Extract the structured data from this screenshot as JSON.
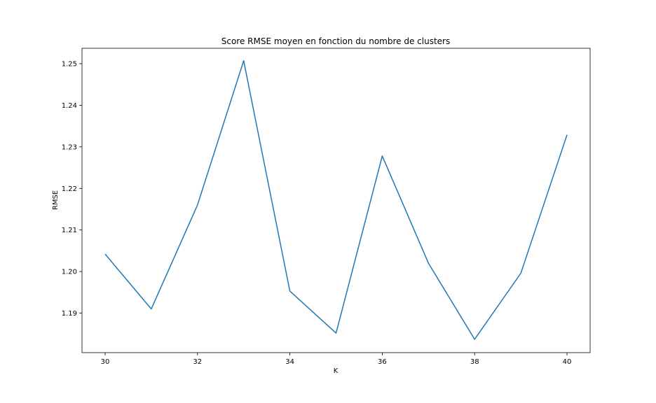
{
  "chart_data": {
    "type": "line",
    "title": "Score RMSE moyen en fonction du nombre de clusters",
    "xlabel": "K",
    "ylabel": "RMSE",
    "x": [
      30,
      31,
      32,
      33,
      34,
      35,
      36,
      37,
      38,
      39,
      40
    ],
    "series": [
      {
        "values": [
          1.2042,
          1.191,
          1.216,
          1.2507,
          1.1953,
          1.1852,
          1.2278,
          1.202,
          1.1837,
          1.1996,
          1.2329
        ],
        "color": "#1f77b4"
      }
    ],
    "xlim": [
      29.5,
      50.5
    ],
    "ylim": [
      1.1805,
      1.2537
    ],
    "xticks": [
      30,
      32,
      34,
      36,
      38,
      40
    ],
    "xtick_labels": [
      "30",
      "32",
      "34",
      "36",
      "38",
      "40"
    ],
    "yticks": [
      1.19,
      1.2,
      1.21,
      1.22,
      1.23,
      1.24,
      1.25
    ],
    "ytick_labels": [
      "1.19",
      "1.20",
      "1.21",
      "1.22",
      "1.23",
      "1.24",
      "1.25"
    ],
    "grid": false,
    "legend": "none"
  }
}
